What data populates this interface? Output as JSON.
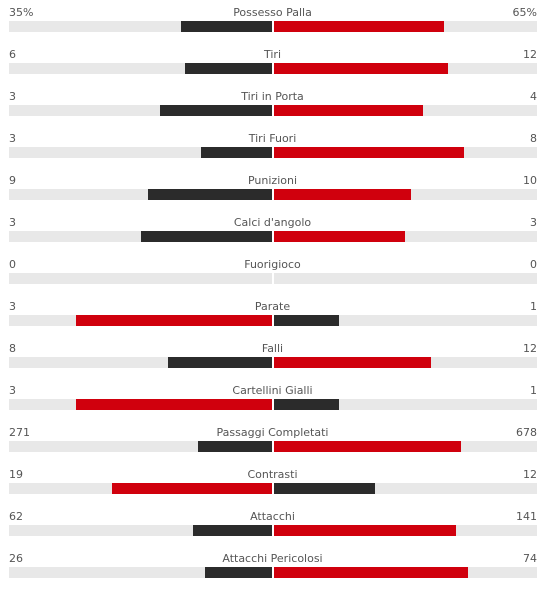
{
  "colors": {
    "dark": "#2b2b2b",
    "red": "#d0000d",
    "track": "#e8e8e8"
  },
  "stats": [
    {
      "label": "Possesso Palla",
      "left": "35%",
      "right": "65%",
      "left_value": 35,
      "right_value": 65,
      "winner": "right"
    },
    {
      "label": "Tiri",
      "left": "6",
      "right": "12",
      "left_value": 6,
      "right_value": 12,
      "winner": "right"
    },
    {
      "label": "Tiri in Porta",
      "left": "3",
      "right": "4",
      "left_value": 3,
      "right_value": 4,
      "winner": "right"
    },
    {
      "label": "Tiri Fuori",
      "left": "3",
      "right": "8",
      "left_value": 3,
      "right_value": 8,
      "winner": "right"
    },
    {
      "label": "Punizioni",
      "left": "9",
      "right": "10",
      "left_value": 9,
      "right_value": 10,
      "winner": "right"
    },
    {
      "label": "Calci d'angolo",
      "left": "3",
      "right": "3",
      "left_value": 3,
      "right_value": 3,
      "winner": "none"
    },
    {
      "label": "Fuorigioco",
      "left": "0",
      "right": "0",
      "left_value": 0,
      "right_value": 0,
      "winner": "none"
    },
    {
      "label": "Parate",
      "left": "3",
      "right": "1",
      "left_value": 3,
      "right_value": 1,
      "winner": "left"
    },
    {
      "label": "Falli",
      "left": "8",
      "right": "12",
      "left_value": 8,
      "right_value": 12,
      "winner": "right"
    },
    {
      "label": "Cartellini Gialli",
      "left": "3",
      "right": "1",
      "left_value": 3,
      "right_value": 1,
      "winner": "left"
    },
    {
      "label": "Passaggi Completati",
      "left": "271",
      "right": "678",
      "left_value": 271,
      "right_value": 678,
      "winner": "right"
    },
    {
      "label": "Contrasti",
      "left": "19",
      "right": "12",
      "left_value": 19,
      "right_value": 12,
      "winner": "left"
    },
    {
      "label": "Attacchi",
      "left": "62",
      "right": "141",
      "left_value": 62,
      "right_value": 141,
      "winner": "right"
    },
    {
      "label": "Attacchi Pericolosi",
      "left": "26",
      "right": "74",
      "left_value": 26,
      "right_value": 74,
      "winner": "right"
    }
  ]
}
